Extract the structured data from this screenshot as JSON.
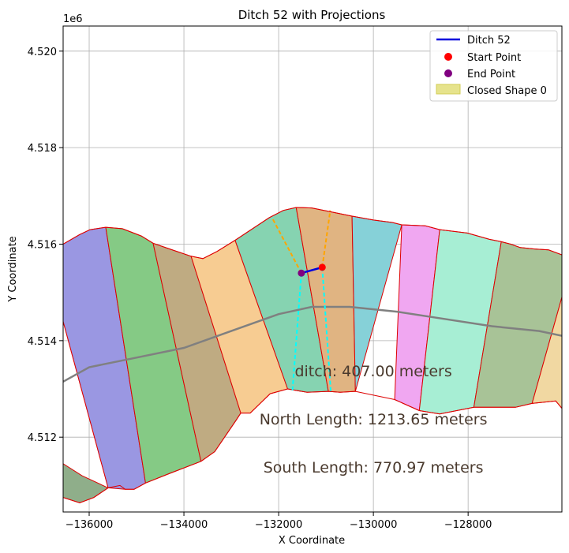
{
  "chart_data": {
    "type": "map-plot",
    "title": "Ditch 52 with Projections",
    "xlabel": "X Coordinate",
    "ylabel": "Y Coordinate",
    "y_offset_label": "1e6",
    "xlim": [
      -136550,
      -126020
    ],
    "ylim": [
      4510450,
      4520520
    ],
    "x_ticks": [
      {
        "value": -136000,
        "label": "−136000"
      },
      {
        "value": -134000,
        "label": "−134000"
      },
      {
        "value": -132000,
        "label": "−132000"
      },
      {
        "value": -130000,
        "label": "−130000"
      },
      {
        "value": -128000,
        "label": "−128000"
      }
    ],
    "y_ticks": [
      {
        "value": 4512000,
        "label": "4.512"
      },
      {
        "value": 4514000,
        "label": "4.514"
      },
      {
        "value": 4516000,
        "label": "4.516"
      },
      {
        "value": 4518000,
        "label": "4.518"
      },
      {
        "value": 4520000,
        "label": "4.520"
      }
    ],
    "grid": true,
    "legend_position": "top-right",
    "legend": [
      {
        "label": "Ditch 52",
        "kind": "line",
        "color": "#0000dd"
      },
      {
        "label": "Start Point",
        "kind": "marker",
        "color": "#ff0000"
      },
      {
        "label": "End Point",
        "kind": "marker",
        "color": "#800080"
      },
      {
        "label": "Closed Shape 0",
        "kind": "patch",
        "color": "#e6e38c"
      }
    ],
    "parcels": [
      {
        "color": "#8fae8a",
        "points": [
          [
            -136550,
            4511450
          ],
          [
            -136550,
            4510750
          ],
          [
            -136200,
            4510640
          ],
          [
            -135900,
            4510750
          ],
          [
            -135600,
            4510950
          ],
          [
            -136150,
            4511200
          ]
        ]
      },
      {
        "color": "#a9b59a",
        "points": [
          [
            -136550,
            4514400
          ],
          [
            -135600,
            4510950
          ],
          [
            -135350,
            4511000
          ],
          [
            -135240,
            4510920
          ]
        ]
      },
      {
        "color": "#9a97e2",
        "points": [
          [
            -136550,
            4516000
          ],
          [
            -136200,
            4516200
          ],
          [
            -135980,
            4516300
          ],
          [
            -135650,
            4516350
          ],
          [
            -134810,
            4511050
          ],
          [
            -135050,
            4510920
          ],
          [
            -135240,
            4510920
          ],
          [
            -135600,
            4510950
          ],
          [
            -136550,
            4514400
          ]
        ]
      },
      {
        "color": "#85ca85",
        "points": [
          [
            -135650,
            4516350
          ],
          [
            -135300,
            4516320
          ],
          [
            -134900,
            4516170
          ],
          [
            -134650,
            4516020
          ],
          [
            -133640,
            4511500
          ],
          [
            -134300,
            4511250
          ],
          [
            -134810,
            4511050
          ]
        ]
      },
      {
        "color": "#bfab82",
        "points": [
          [
            -134650,
            4516020
          ],
          [
            -134300,
            4515900
          ],
          [
            -133850,
            4515750
          ],
          [
            -132800,
            4512500
          ],
          [
            -132900,
            4512350
          ],
          [
            -133350,
            4511700
          ],
          [
            -133640,
            4511500
          ]
        ]
      },
      {
        "color": "#f7cc92",
        "points": [
          [
            -133850,
            4515750
          ],
          [
            -133600,
            4515700
          ],
          [
            -133300,
            4515850
          ],
          [
            -132920,
            4516080
          ],
          [
            -131810,
            4513000
          ],
          [
            -132180,
            4512900
          ],
          [
            -132600,
            4512500
          ],
          [
            -132800,
            4512500
          ]
        ]
      },
      {
        "color": "#86d3b1",
        "points": [
          [
            -132920,
            4516080
          ],
          [
            -132200,
            4516550
          ],
          [
            -131900,
            4516700
          ],
          [
            -131630,
            4516760
          ],
          [
            -130950,
            4512950
          ],
          [
            -131400,
            4512930
          ],
          [
            -131810,
            4513000
          ]
        ]
      },
      {
        "color": "#e0b482",
        "points": [
          [
            -131630,
            4516760
          ],
          [
            -131300,
            4516750
          ],
          [
            -130950,
            4516680
          ],
          [
            -130450,
            4516580
          ],
          [
            -130380,
            4512950
          ],
          [
            -130700,
            4512930
          ],
          [
            -130950,
            4512950
          ]
        ]
      },
      {
        "color": "#86d1d8",
        "points": [
          [
            -130450,
            4516580
          ],
          [
            -130000,
            4516500
          ],
          [
            -129600,
            4516450
          ],
          [
            -129400,
            4516400
          ],
          [
            -130380,
            4512950
          ]
        ]
      },
      {
        "color": "#f0a7f1",
        "points": [
          [
            -129400,
            4516400
          ],
          [
            -128900,
            4516380
          ],
          [
            -128600,
            4516300
          ],
          [
            -129030,
            4512550
          ],
          [
            -129550,
            4512780
          ]
        ]
      },
      {
        "color": "#a7eed4",
        "points": [
          [
            -128600,
            4516300
          ],
          [
            -128020,
            4516230
          ],
          [
            -127550,
            4516100
          ],
          [
            -127300,
            4516050
          ],
          [
            -127880,
            4512620
          ],
          [
            -128400,
            4512520
          ],
          [
            -128600,
            4512480
          ],
          [
            -129030,
            4512550
          ]
        ]
      },
      {
        "color": "#a8c397",
        "points": [
          [
            -127300,
            4516050
          ],
          [
            -127100,
            4516000
          ],
          [
            -126900,
            4515930
          ],
          [
            -126600,
            4515900
          ],
          [
            -126300,
            4515880
          ],
          [
            -126020,
            4515780
          ],
          [
            -126020,
            4514900
          ],
          [
            -126650,
            4512700
          ],
          [
            -127000,
            4512620
          ],
          [
            -127380,
            4512620
          ],
          [
            -127880,
            4512620
          ]
        ]
      },
      {
        "color": "#f1d8a2",
        "points": [
          [
            -126020,
            4514900
          ],
          [
            -126020,
            4512600
          ],
          [
            -126150,
            4512750
          ],
          [
            -126650,
            4512700
          ]
        ]
      }
    ],
    "outline_path": [
      [
        -136550,
        4516000
      ],
      [
        -136200,
        4516200
      ],
      [
        -135980,
        4516300
      ],
      [
        -135650,
        4516350
      ],
      [
        -135300,
        4516320
      ],
      [
        -134900,
        4516170
      ],
      [
        -134650,
        4516020
      ],
      [
        -134300,
        4515900
      ],
      [
        -133850,
        4515750
      ],
      [
        -133600,
        4515700
      ],
      [
        -133300,
        4515850
      ],
      [
        -132920,
        4516080
      ],
      [
        -132200,
        4516550
      ],
      [
        -131900,
        4516700
      ],
      [
        -131630,
        4516760
      ],
      [
        -131300,
        4516750
      ],
      [
        -130950,
        4516680
      ],
      [
        -130450,
        4516580
      ],
      [
        -130000,
        4516500
      ],
      [
        -129600,
        4516450
      ],
      [
        -129400,
        4516400
      ],
      [
        -128900,
        4516380
      ],
      [
        -128600,
        4516300
      ],
      [
        -128020,
        4516230
      ],
      [
        -127550,
        4516100
      ],
      [
        -127300,
        4516050
      ],
      [
        -127100,
        4516000
      ],
      [
        -126900,
        4515930
      ],
      [
        -126600,
        4515900
      ],
      [
        -126300,
        4515880
      ],
      [
        -126020,
        4515780
      ]
    ],
    "south_outline_path": [
      [
        -136550,
        4510750
      ],
      [
        -136200,
        4510640
      ],
      [
        -135900,
        4510750
      ],
      [
        -135600,
        4510950
      ],
      [
        -135350,
        4511000
      ],
      [
        -135240,
        4510920
      ],
      [
        -135050,
        4510920
      ],
      [
        -134810,
        4511050
      ],
      [
        -134300,
        4511250
      ],
      [
        -133640,
        4511500
      ],
      [
        -133350,
        4511700
      ],
      [
        -132900,
        4512350
      ],
      [
        -132800,
        4512500
      ],
      [
        -132600,
        4512500
      ],
      [
        -132180,
        4512900
      ],
      [
        -131810,
        4513000
      ],
      [
        -131400,
        4512930
      ],
      [
        -130950,
        4512950
      ],
      [
        -130700,
        4512930
      ],
      [
        -130380,
        4512950
      ],
      [
        -129550,
        4512780
      ],
      [
        -129030,
        4512550
      ],
      [
        -128600,
        4512480
      ],
      [
        -128400,
        4512520
      ],
      [
        -127880,
        4512620
      ],
      [
        -127380,
        4512620
      ],
      [
        -127000,
        4512620
      ],
      [
        -126650,
        4512700
      ],
      [
        -126150,
        4512750
      ],
      [
        -126020,
        4512600
      ]
    ],
    "road": {
      "color": "#808080",
      "points": [
        [
          -136550,
          4513150
        ],
        [
          -136000,
          4513450
        ],
        [
          -135000,
          4513650
        ],
        [
          -134000,
          4513850
        ],
        [
          -133000,
          4514200
        ],
        [
          -132000,
          4514550
        ],
        [
          -131300,
          4514700
        ],
        [
          -130500,
          4514700
        ],
        [
          -129500,
          4514600
        ],
        [
          -128500,
          4514450
        ],
        [
          -127500,
          4514300
        ],
        [
          -126500,
          4514200
        ],
        [
          -126020,
          4514100
        ]
      ]
    },
    "ditch": {
      "start": [
        -131080,
        4515520
      ],
      "end": [
        -131520,
        4515400
      ]
    },
    "projections_north": [
      {
        "color": "#ffa500",
        "points": [
          [
            -131520,
            4515400
          ],
          [
            -132130,
            4516530
          ]
        ]
      },
      {
        "color": "#ffa500",
        "points": [
          [
            -131080,
            4515520
          ],
          [
            -130910,
            4516700
          ]
        ]
      }
    ],
    "projections_south": [
      {
        "color": "#00ffff",
        "points": [
          [
            -131520,
            4515400
          ],
          [
            -131710,
            4512950
          ]
        ]
      },
      {
        "color": "#00ffff",
        "points": [
          [
            -131080,
            4515520
          ],
          [
            -130900,
            4512950
          ]
        ]
      }
    ],
    "annotations": [
      {
        "text": "ditch: 407.00 meters",
        "x": -130000,
        "y": 4513380
      },
      {
        "text": "North Length: 1213.65 meters",
        "x": -130000,
        "y": 4512380
      },
      {
        "text": "South Length: 770.97 meters",
        "x": -130000,
        "y": 4511380
      }
    ]
  }
}
